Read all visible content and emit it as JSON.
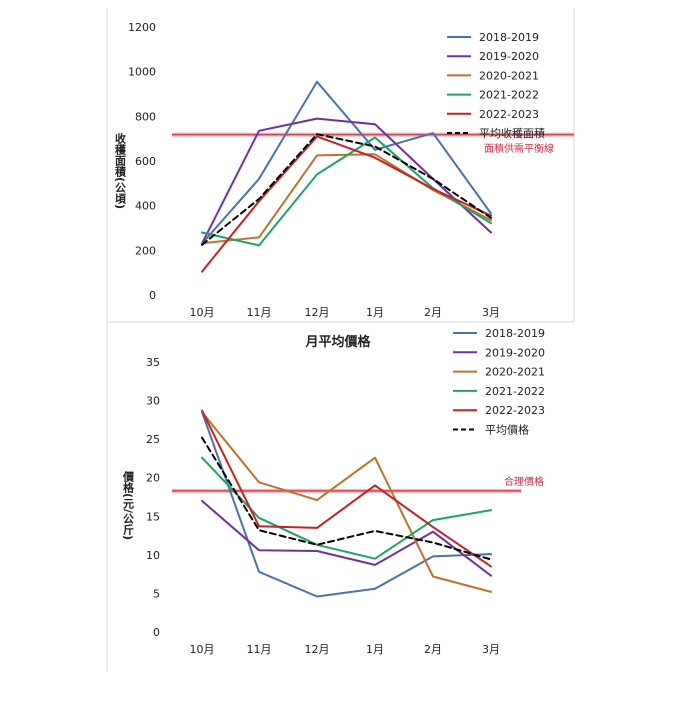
{
  "chart_data": [
    {
      "type": "line",
      "title": "",
      "xlabel": "",
      "ylabel": "收穫面積(公頃)",
      "ylim": [
        0,
        1200
      ],
      "yticks": [
        0,
        200,
        400,
        600,
        800,
        1000,
        1200
      ],
      "categories": [
        "10月",
        "11月",
        "12月",
        "1月",
        "2月",
        "3月"
      ],
      "legend_position": "top-right",
      "grid": false,
      "series": [
        {
          "name": "2018-2019",
          "color": "#4a72b0",
          "dash": false,
          "values": [
            230,
            520,
            955,
            650,
            725,
            365
          ]
        },
        {
          "name": "2019-2020",
          "color": "#7030a0",
          "dash": false,
          "values": [
            230,
            735,
            790,
            765,
            520,
            280
          ]
        },
        {
          "name": "2020-2021",
          "color": "#c0712c",
          "dash": false,
          "values": [
            232,
            258,
            625,
            630,
            470,
            335
          ]
        },
        {
          "name": "2021-2022",
          "color": "#1ca46a",
          "dash": false,
          "values": [
            280,
            222,
            540,
            705,
            478,
            322
          ]
        },
        {
          "name": "2022-2023",
          "color": "#cc2020",
          "dash": false,
          "values": [
            105,
            420,
            710,
            615,
            475,
            355
          ]
        },
        {
          "name": "平均收穫面積",
          "color": "#000000",
          "dash": true,
          "values": [
            225,
            430,
            720,
            665,
            520,
            345
          ]
        }
      ],
      "reference_line": {
        "label": "面積供需平衡線",
        "value": 718,
        "color": "#d03040"
      }
    },
    {
      "type": "line",
      "title": "月平均價格",
      "xlabel": "",
      "ylabel": "價格(元/公斤)",
      "ylim": [
        0,
        35
      ],
      "yticks": [
        0,
        5,
        10,
        15,
        20,
        25,
        30,
        35
      ],
      "categories": [
        "10月",
        "11月",
        "12月",
        "1月",
        "2月",
        "3月"
      ],
      "legend_position": "top-right",
      "grid": false,
      "series": [
        {
          "name": "2018-2019",
          "color": "#4a72b0",
          "dash": false,
          "values": [
            28.5,
            7.8,
            4.6,
            5.6,
            9.8,
            10.1
          ]
        },
        {
          "name": "2019-2020",
          "color": "#7030a0",
          "dash": false,
          "values": [
            17.0,
            10.6,
            10.5,
            8.7,
            13.0,
            7.3
          ]
        },
        {
          "name": "2020-2021",
          "color": "#c0712c",
          "dash": false,
          "values": [
            28.5,
            19.4,
            17.1,
            22.6,
            7.2,
            5.2
          ]
        },
        {
          "name": "2021-2022",
          "color": "#1ca46a",
          "dash": false,
          "values": [
            22.6,
            14.8,
            11.3,
            9.5,
            14.5,
            15.8
          ]
        },
        {
          "name": "2022-2023",
          "color": "#cc2020",
          "dash": false,
          "values": [
            28.7,
            13.7,
            13.5,
            19.0,
            13.6,
            8.5
          ]
        },
        {
          "name": "平均價格",
          "color": "#000000",
          "dash": true,
          "values": [
            25.2,
            13.2,
            11.3,
            13.1,
            11.6,
            9.4
          ]
        }
      ],
      "reference_line": {
        "label": "合理價格",
        "value": 18.3,
        "color": "#d03040"
      }
    }
  ]
}
